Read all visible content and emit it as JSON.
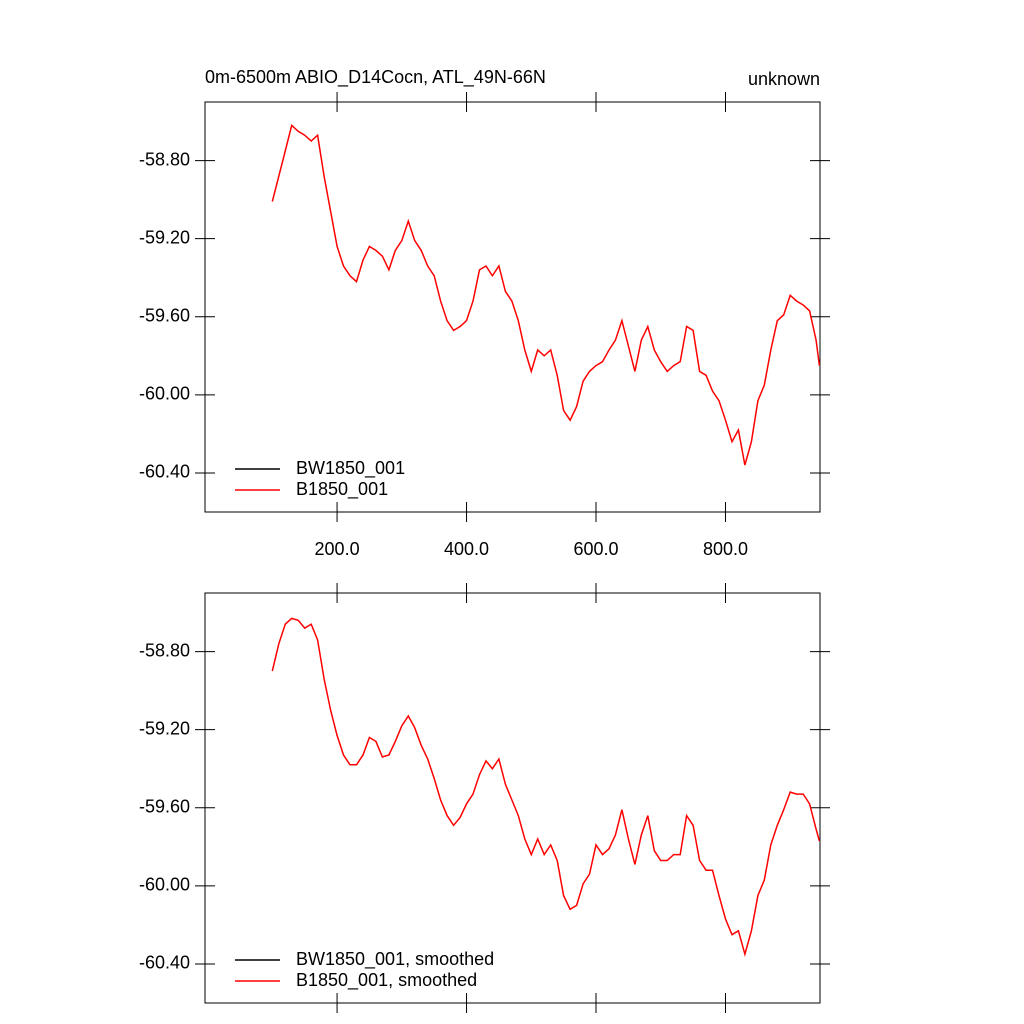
{
  "chart_data": [
    {
      "type": "line",
      "title": "0m-6500m ABIO_D14Cocn, ATL_49N-66N",
      "subtitle": "unknown",
      "legend": "bottom-left",
      "xlim": [
        -4,
        946
      ],
      "ylim": [
        -60.6,
        -58.5
      ],
      "xticks": [
        {
          "value": 200,
          "label": "200.0"
        },
        {
          "value": 400,
          "label": "400.0"
        },
        {
          "value": 600,
          "label": "600.0"
        },
        {
          "value": 800,
          "label": "800.0"
        }
      ],
      "yticks": [
        {
          "value": -58.8,
          "label": "-58.80"
        },
        {
          "value": -59.2,
          "label": "-59.20"
        },
        {
          "value": -59.6,
          "label": "-59.60"
        },
        {
          "value": -60.0,
          "label": "-60.00"
        },
        {
          "value": -60.4,
          "label": "-60.40"
        }
      ],
      "x": [
        100,
        110,
        120,
        130,
        140,
        150,
        160,
        170,
        180,
        190,
        200,
        210,
        220,
        230,
        240,
        250,
        260,
        270,
        280,
        290,
        300,
        310,
        320,
        330,
        340,
        350,
        360,
        370,
        380,
        390,
        400,
        410,
        420,
        430,
        440,
        450,
        460,
        470,
        480,
        490,
        500,
        510,
        520,
        530,
        540,
        550,
        560,
        570,
        580,
        590,
        600,
        610,
        620,
        630,
        640,
        650,
        660,
        670,
        680,
        690,
        700,
        710,
        720,
        730,
        740,
        750,
        760,
        770,
        780,
        790,
        800,
        810,
        820,
        830,
        840,
        850,
        860,
        870,
        880,
        890,
        900,
        910,
        920,
        930,
        940,
        945
      ],
      "series": [
        {
          "name": "BW1850_001",
          "color": "#000000",
          "values": [
            null,
            null,
            null,
            null,
            null,
            null,
            null,
            null,
            null,
            null,
            null,
            null,
            null,
            null,
            null,
            null,
            null,
            null,
            null,
            null,
            null,
            null,
            null,
            null,
            null,
            null,
            null,
            null,
            null,
            null,
            null,
            null,
            null,
            null,
            null,
            null,
            null,
            null,
            null,
            null,
            null,
            null,
            null,
            null,
            null,
            null,
            null,
            null,
            null,
            null,
            null,
            null,
            null,
            null,
            null,
            null,
            null,
            null,
            null,
            null,
            null,
            null,
            null,
            null,
            null,
            null,
            null,
            null,
            null,
            null,
            null,
            null,
            null,
            null,
            null,
            null,
            null,
            null,
            null,
            null,
            null,
            null,
            null,
            null,
            null,
            null
          ]
        },
        {
          "name": "B1850_001",
          "color": "#ff0000",
          "values": [
            -59.01,
            -58.88,
            -58.75,
            -58.62,
            -58.65,
            -58.67,
            -58.7,
            -58.67,
            -58.88,
            -59.06,
            -59.24,
            -59.34,
            -59.39,
            -59.42,
            -59.31,
            -59.24,
            -59.26,
            -59.29,
            -59.36,
            -59.26,
            -59.21,
            -59.11,
            -59.21,
            -59.26,
            -59.34,
            -59.39,
            -59.52,
            -59.62,
            -59.67,
            -59.65,
            -59.62,
            -59.52,
            -59.36,
            -59.34,
            -59.39,
            -59.34,
            -59.47,
            -59.52,
            -59.62,
            -59.77,
            -59.88,
            -59.77,
            -59.8,
            -59.77,
            -59.9,
            -60.08,
            -60.13,
            -60.06,
            -59.93,
            -59.88,
            -59.85,
            -59.83,
            -59.77,
            -59.72,
            -59.62,
            -59.75,
            -59.88,
            -59.72,
            -59.65,
            -59.77,
            -59.83,
            -59.88,
            -59.85,
            -59.83,
            -59.65,
            -59.67,
            -59.88,
            -59.9,
            -59.98,
            -60.03,
            -60.13,
            -60.24,
            -60.18,
            -60.36,
            -60.24,
            -60.03,
            -59.95,
            -59.77,
            -59.62,
            -59.59,
            -59.49,
            -59.52,
            -59.54,
            -59.57,
            -59.72,
            -59.85
          ]
        }
      ]
    },
    {
      "type": "line",
      "legend": "bottom-left",
      "xlim": [
        -4,
        946
      ],
      "ylim": [
        -60.6,
        -58.5
      ],
      "xticks": [
        200,
        400,
        600,
        800
      ],
      "yticks": [
        {
          "value": -58.8,
          "label": "-58.80"
        },
        {
          "value": -59.2,
          "label": "-59.20"
        },
        {
          "value": -59.6,
          "label": "-59.60"
        },
        {
          "value": -60.0,
          "label": "-60.00"
        },
        {
          "value": -60.4,
          "label": "-60.40"
        }
      ],
      "x": [
        100,
        110,
        120,
        130,
        140,
        150,
        160,
        170,
        180,
        190,
        200,
        210,
        220,
        230,
        240,
        250,
        260,
        270,
        280,
        290,
        300,
        310,
        320,
        330,
        340,
        350,
        360,
        370,
        380,
        390,
        400,
        410,
        420,
        430,
        440,
        450,
        460,
        470,
        480,
        490,
        500,
        510,
        520,
        530,
        540,
        550,
        560,
        570,
        580,
        590,
        600,
        610,
        620,
        630,
        640,
        650,
        660,
        670,
        680,
        690,
        700,
        710,
        720,
        730,
        740,
        750,
        760,
        770,
        780,
        790,
        800,
        810,
        820,
        830,
        840,
        850,
        860,
        870,
        880,
        890,
        900,
        910,
        920,
        930,
        940,
        945
      ],
      "series": [
        {
          "name": "BW1850_001, smoothed",
          "color": "#000000",
          "values": [
            null,
            null,
            null,
            null,
            null,
            null,
            null,
            null,
            null,
            null,
            null,
            null,
            null,
            null,
            null,
            null,
            null,
            null,
            null,
            null,
            null,
            null,
            null,
            null,
            null,
            null,
            null,
            null,
            null,
            null,
            null,
            null,
            null,
            null,
            null,
            null,
            null,
            null,
            null,
            null,
            null,
            null,
            null,
            null,
            null,
            null,
            null,
            null,
            null,
            null,
            null,
            null,
            null,
            null,
            null,
            null,
            null,
            null,
            null,
            null,
            null,
            null,
            null,
            null,
            null,
            null,
            null,
            null,
            null,
            null,
            null,
            null,
            null,
            null,
            null,
            null,
            null,
            null,
            null,
            null,
            null,
            null,
            null,
            null,
            null,
            null
          ]
        },
        {
          "name": "B1850_001, smoothed",
          "color": "#ff0000",
          "values": [
            -58.9,
            -58.76,
            -58.66,
            -58.63,
            -58.64,
            -58.68,
            -58.66,
            -58.74,
            -58.94,
            -59.1,
            -59.23,
            -59.33,
            -59.38,
            -59.38,
            -59.33,
            -59.24,
            -59.26,
            -59.34,
            -59.33,
            -59.26,
            -59.18,
            -59.13,
            -59.19,
            -59.28,
            -59.35,
            -59.45,
            -59.56,
            -59.64,
            -59.69,
            -59.65,
            -59.58,
            -59.53,
            -59.43,
            -59.36,
            -59.4,
            -59.35,
            -59.48,
            -59.56,
            -59.64,
            -59.76,
            -59.84,
            -59.76,
            -59.84,
            -59.79,
            -59.87,
            -60.05,
            -60.12,
            -60.1,
            -59.99,
            -59.94,
            -59.79,
            -59.84,
            -59.81,
            -59.74,
            -59.61,
            -59.76,
            -59.89,
            -59.74,
            -59.64,
            -59.82,
            -59.87,
            -59.87,
            -59.84,
            -59.84,
            -59.64,
            -59.69,
            -59.87,
            -59.92,
            -59.92,
            -60.05,
            -60.17,
            -60.25,
            -60.23,
            -60.35,
            -60.23,
            -60.05,
            -59.97,
            -59.79,
            -59.69,
            -59.61,
            -59.52,
            -59.53,
            -59.53,
            -59.58,
            -59.71,
            -59.77
          ]
        }
      ]
    }
  ]
}
